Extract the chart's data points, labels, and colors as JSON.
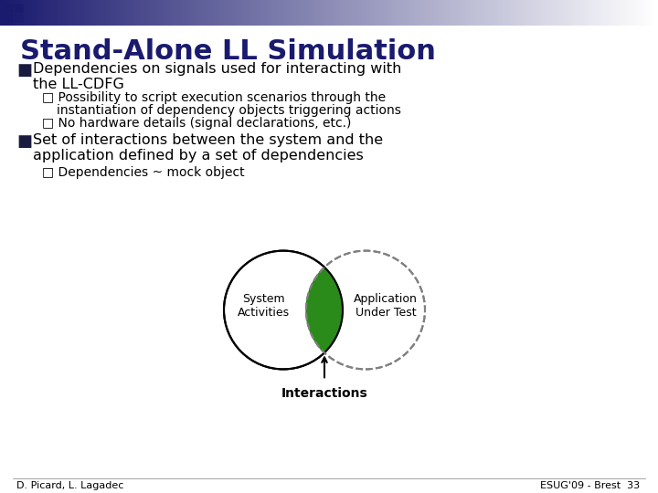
{
  "title": "Stand-Alone LL Simulation",
  "title_color": "#1a1a6e",
  "background_color": "#ffffff",
  "header_gradient_start": "#1a1a6e",
  "header_gradient_end": "#ffffff",
  "bullet1_main": "Dependencies on signals used for interacting with\nthe LL-CDFG",
  "bullet1_sub1": "Possibility to script execution scenarios through the\n      instantiation of dependency objects triggering actions",
  "bullet1_sub2": "No hardware details (signal declarations, etc.)",
  "bullet2_main": "Set of interactions between the system and the\napplication defined by a set of dependencies",
  "bullet2_sub1": "Dependencies ~ mock object",
  "circle_left_label": "System\nActivities",
  "circle_right_label": "Application\nUnder Test",
  "intersection_label": "Interactions",
  "footer_left": "D. Picard, L. Lagadec",
  "footer_right": "ESUG'09 - Brest  33",
  "bullet_color": "#1a1a3e",
  "text_color": "#000000",
  "circle_color": "#000000",
  "circle_fill": "#ffffff",
  "circle_dashed_color": "#888888",
  "intersection_fill": "#2a8a1a",
  "arrow_color": "#000000"
}
